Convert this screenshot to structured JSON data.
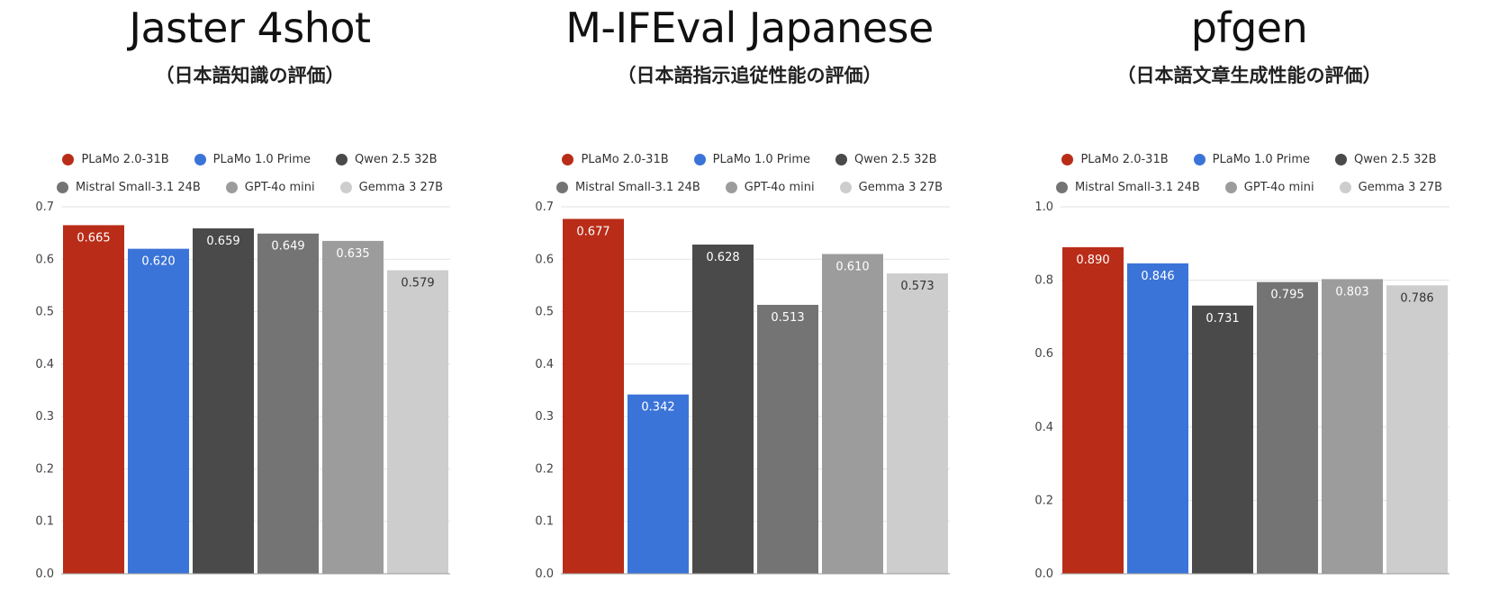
{
  "chart_data": [
    {
      "type": "bar",
      "title": "Jaster 4shot",
      "subtitle": "（日本語知識の評価）",
      "series": [
        {
          "name": "PLaMo 2.0-31B",
          "value": 0.665
        },
        {
          "name": "PLaMo 1.0 Prime",
          "value": 0.62
        },
        {
          "name": "Qwen 2.5 32B",
          "value": 0.659
        },
        {
          "name": "Mistral Small-3.1 24B",
          "value": 0.649
        },
        {
          "name": "GPT-4o mini",
          "value": 0.635
        },
        {
          "name": "Gemma 3 27B",
          "value": 0.579
        }
      ],
      "value_labels": [
        "0.665",
        "0.620",
        "0.659",
        "0.649",
        "0.635",
        "0.579"
      ],
      "yticks": [
        "0.0",
        "0.1",
        "0.2",
        "0.3",
        "0.4",
        "0.5",
        "0.6",
        "0.7"
      ],
      "ylim": [
        0,
        0.7
      ],
      "grid": true,
      "legend": "top"
    },
    {
      "type": "bar",
      "title": "M-IFEval Japanese",
      "subtitle": "（日本語指示追従性能の評価）",
      "series": [
        {
          "name": "PLaMo 2.0-31B",
          "value": 0.677
        },
        {
          "name": "PLaMo 1.0 Prime",
          "value": 0.342
        },
        {
          "name": "Qwen 2.5 32B",
          "value": 0.628
        },
        {
          "name": "Mistral Small-3.1 24B",
          "value": 0.513
        },
        {
          "name": "GPT-4o mini",
          "value": 0.61
        },
        {
          "name": "Gemma 3 27B",
          "value": 0.573
        }
      ],
      "value_labels": [
        "0.677",
        "0.342",
        "0.628",
        "0.513",
        "0.610",
        "0.573"
      ],
      "yticks": [
        "0.0",
        "0.1",
        "0.2",
        "0.3",
        "0.4",
        "0.5",
        "0.6",
        "0.7"
      ],
      "ylim": [
        0,
        0.7
      ],
      "grid": true,
      "legend": "top"
    },
    {
      "type": "bar",
      "title": "pfgen",
      "subtitle": "（日本語文章生成性能の評価）",
      "series": [
        {
          "name": "PLaMo 2.0-31B",
          "value": 0.89
        },
        {
          "name": "PLaMo 1.0 Prime",
          "value": 0.846
        },
        {
          "name": "Qwen 2.5 32B",
          "value": 0.731
        },
        {
          "name": "Mistral Small-3.1 24B",
          "value": 0.795
        },
        {
          "name": "GPT-4o mini",
          "value": 0.803
        },
        {
          "name": "Gemma 3 27B",
          "value": 0.786
        }
      ],
      "value_labels": [
        "0.890",
        "0.846",
        "0.731",
        "0.795",
        "0.803",
        "0.786"
      ],
      "yticks": [
        "0.0",
        "0.2",
        "0.4",
        "0.6",
        "0.8",
        "1.0"
      ],
      "ylim": [
        0,
        1.0
      ],
      "grid": true,
      "legend": "top"
    }
  ],
  "colors": {
    "PLaMo 2.0-31B": "#b92d18",
    "PLaMo 1.0 Prime": "#3b74d8",
    "Qwen 2.5 32B": "#4a4a4a",
    "Mistral Small-3.1 24B": "#747474",
    "GPT-4o mini": "#9c9c9c",
    "Gemma 3 27B": "#cdcdcd"
  }
}
